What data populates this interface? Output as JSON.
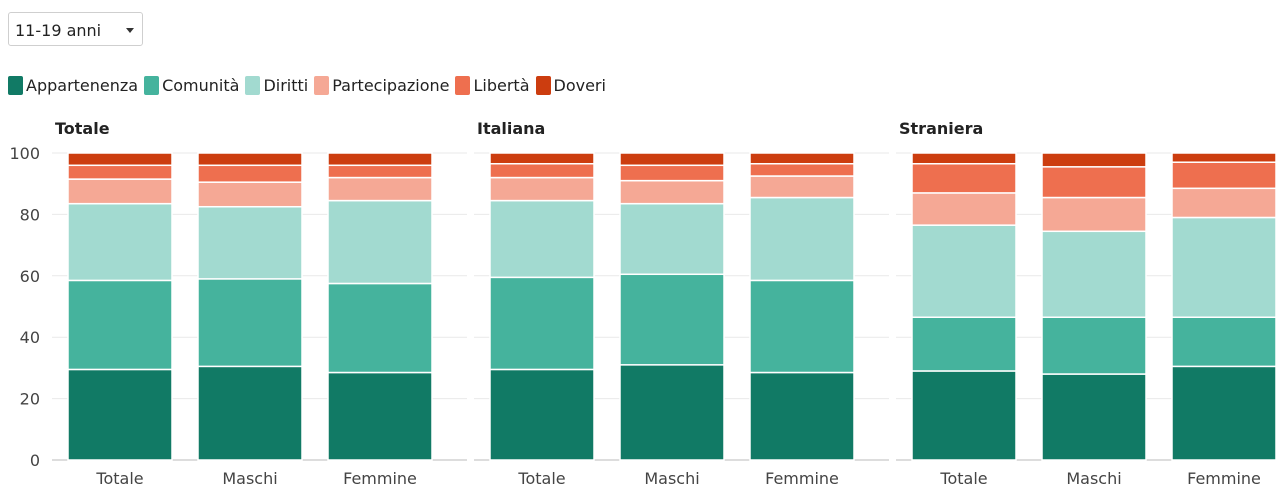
{
  "filter": {
    "selected": "11-19 anni"
  },
  "chart_data": {
    "type": "bar",
    "stacked": true,
    "ylim": [
      0,
      100
    ],
    "yticks": [
      0,
      20,
      40,
      60,
      80,
      100
    ],
    "categories": [
      "Totale",
      "Maschi",
      "Femmine"
    ],
    "series": [
      {
        "name": "Appartenenza",
        "color": "#117a65"
      },
      {
        "name": "Comunità",
        "color": "#45b39d"
      },
      {
        "name": "Diritti",
        "color": "#a2dad0"
      },
      {
        "name": "Partecipazione",
        "color": "#f5a895"
      },
      {
        "name": "Libertà",
        "color": "#ee6f4f"
      },
      {
        "name": "Doveri",
        "color": "#cc3d0f"
      }
    ],
    "panels": [
      {
        "title": "Totale",
        "values": [
          [
            29.5,
            29,
            25,
            8,
            4.5,
            4
          ],
          [
            30.5,
            28.5,
            23.5,
            8,
            5.5,
            4
          ],
          [
            28.5,
            29,
            27,
            7.5,
            4,
            4
          ]
        ]
      },
      {
        "title": "Italiana",
        "values": [
          [
            29.5,
            30,
            25,
            7.5,
            4.5,
            3.5
          ],
          [
            31,
            29.5,
            23,
            7.5,
            5,
            4
          ],
          [
            28.5,
            30,
            27,
            7,
            4,
            3.5
          ]
        ]
      },
      {
        "title": "Straniera",
        "values": [
          [
            29,
            17.5,
            30,
            10.5,
            9.5,
            3.5
          ],
          [
            28,
            18.5,
            28,
            11,
            10,
            4.5
          ],
          [
            30.5,
            16,
            32.5,
            9.5,
            8.5,
            3
          ]
        ]
      }
    ]
  }
}
